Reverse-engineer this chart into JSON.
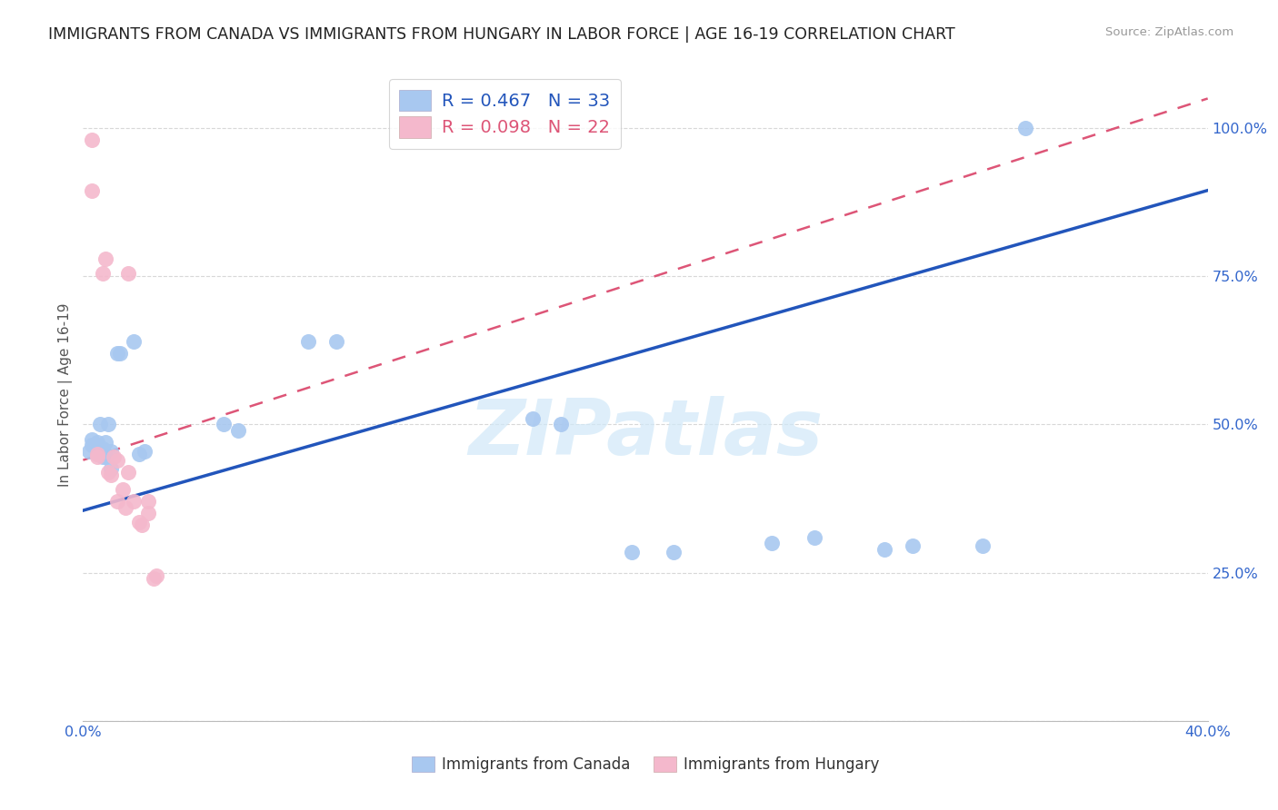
{
  "title": "IMMIGRANTS FROM CANADA VS IMMIGRANTS FROM HUNGARY IN LABOR FORCE | AGE 16-19 CORRELATION CHART",
  "source": "Source: ZipAtlas.com",
  "ylabel": "In Labor Force | Age 16-19",
  "xlim": [
    0.0,
    0.4
  ],
  "ylim": [
    0.0,
    1.1
  ],
  "ytick_vals": [
    0.0,
    0.25,
    0.5,
    0.75,
    1.0
  ],
  "ytick_labels": [
    "",
    "25.0%",
    "50.0%",
    "75.0%",
    "100.0%"
  ],
  "xtick_vals": [
    0.0,
    0.05,
    0.1,
    0.15,
    0.2,
    0.25,
    0.3,
    0.35,
    0.4
  ],
  "xtick_labels": [
    "0.0%",
    "",
    "",
    "",
    "",
    "",
    "",
    "",
    "40.0%"
  ],
  "canada_R": 0.467,
  "canada_N": 33,
  "hungary_R": 0.098,
  "hungary_N": 22,
  "canada_color": "#a8c8f0",
  "hungary_color": "#f4b8cc",
  "canada_line_color": "#2255bb",
  "hungary_line_color": "#dd5577",
  "canada_scatter_x": [
    0.002,
    0.003,
    0.003,
    0.004,
    0.005,
    0.005,
    0.006,
    0.007,
    0.007,
    0.008,
    0.008,
    0.009,
    0.01,
    0.01,
    0.012,
    0.013,
    0.018,
    0.02,
    0.022,
    0.05,
    0.055,
    0.08,
    0.09,
    0.16,
    0.17,
    0.195,
    0.21,
    0.245,
    0.26,
    0.285,
    0.295,
    0.32,
    0.335
  ],
  "canada_scatter_y": [
    0.455,
    0.475,
    0.465,
    0.465,
    0.47,
    0.45,
    0.5,
    0.445,
    0.46,
    0.445,
    0.47,
    0.5,
    0.425,
    0.455,
    0.62,
    0.62,
    0.64,
    0.45,
    0.455,
    0.5,
    0.49,
    0.64,
    0.64,
    0.51,
    0.5,
    0.285,
    0.285,
    0.3,
    0.31,
    0.29,
    0.295,
    0.295,
    1.0
  ],
  "hungary_scatter_x": [
    0.003,
    0.003,
    0.005,
    0.005,
    0.007,
    0.008,
    0.009,
    0.01,
    0.011,
    0.012,
    0.012,
    0.014,
    0.015,
    0.016,
    0.016,
    0.018,
    0.02,
    0.021,
    0.023,
    0.023,
    0.025,
    0.026
  ],
  "hungary_scatter_y": [
    0.98,
    0.895,
    0.45,
    0.445,
    0.755,
    0.78,
    0.42,
    0.415,
    0.445,
    0.44,
    0.37,
    0.39,
    0.36,
    0.755,
    0.42,
    0.37,
    0.335,
    0.33,
    0.37,
    0.35,
    0.24,
    0.245
  ],
  "canada_line_x0": 0.0,
  "canada_line_y0": 0.355,
  "canada_line_x1": 0.4,
  "canada_line_y1": 0.895,
  "hungary_line_x0": 0.0,
  "hungary_line_y0": 0.44,
  "hungary_line_x1": 0.4,
  "hungary_line_y1": 1.05,
  "watermark_text": "ZIPatlas",
  "watermark_color": "#d0e8f8",
  "bg_color": "#ffffff",
  "grid_color": "#d8d8d8"
}
